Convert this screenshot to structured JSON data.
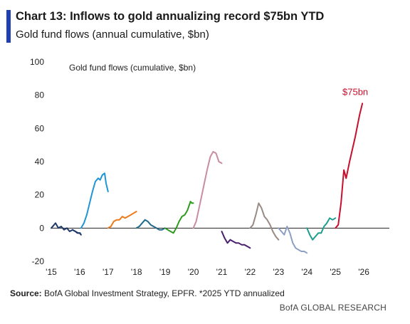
{
  "header": {
    "title": "Chart 13: Inflows to gold annualizing record $75bn YTD",
    "subtitle": "Gold fund flows (annual cumulative, $bn)"
  },
  "footer": {
    "source_label": "Source:",
    "source_text": " BofA Global Investment Strategy, EPFR. *2025 YTD annualized",
    "brand": "BofA GLOBAL RESEARCH"
  },
  "chart_data": {
    "type": "line",
    "title": "Chart 13: Inflows to gold annualizing record $75bn YTD",
    "subtitle": "Gold fund flows (annual cumulative, $bn)",
    "inner_label": "Gold fund flows (cumulative, $bn)",
    "xlabel": "",
    "ylabel": "",
    "xlim": [
      2015,
      2026.9
    ],
    "ylim": [
      -20,
      100
    ],
    "y_ticks": [
      -20,
      0,
      20,
      40,
      60,
      80,
      100
    ],
    "x_ticks": [
      {
        "value": 2015,
        "label": "'15"
      },
      {
        "value": 2016,
        "label": "'16"
      },
      {
        "value": 2017,
        "label": "'17"
      },
      {
        "value": 2018,
        "label": "'18"
      },
      {
        "value": 2019,
        "label": "'19"
      },
      {
        "value": 2020,
        "label": "'20"
      },
      {
        "value": 2021,
        "label": "'21"
      },
      {
        "value": 2022,
        "label": "'22"
      },
      {
        "value": 2023,
        "label": "'23"
      },
      {
        "value": 2024,
        "label": "'24"
      },
      {
        "value": 2025,
        "label": "'25"
      },
      {
        "value": 2026,
        "label": "'26"
      }
    ],
    "grid": false,
    "zero_line": true,
    "annotations": [
      {
        "text": "$75bn",
        "x": 2025.95,
        "y": 75,
        "color": "#c8102e"
      }
    ],
    "series": [
      {
        "color": "#1f3a6b",
        "points": [
          [
            2015.0,
            0
          ],
          [
            2015.1,
            2
          ],
          [
            2015.15,
            3
          ],
          [
            2015.25,
            0
          ],
          [
            2015.35,
            1
          ],
          [
            2015.45,
            -1
          ],
          [
            2015.55,
            0
          ],
          [
            2015.65,
            -2
          ],
          [
            2015.75,
            -1
          ],
          [
            2015.85,
            -2
          ],
          [
            2015.95,
            -3
          ],
          [
            2016.02,
            -3
          ]
        ]
      },
      {
        "color": "#1f3a6b",
        "points": [
          [
            2015.75,
            -1
          ],
          [
            2015.85,
            -2
          ],
          [
            2015.92,
            -3
          ],
          [
            2016.0,
            -3
          ],
          [
            2016.05,
            -4
          ]
        ]
      },
      {
        "color": "#1f95d6",
        "points": [
          [
            2016.05,
            0
          ],
          [
            2016.15,
            3
          ],
          [
            2016.25,
            8
          ],
          [
            2016.35,
            15
          ],
          [
            2016.45,
            22
          ],
          [
            2016.55,
            28
          ],
          [
            2016.65,
            30
          ],
          [
            2016.72,
            29
          ],
          [
            2016.8,
            32
          ],
          [
            2016.88,
            33
          ],
          [
            2016.93,
            27
          ],
          [
            2017.0,
            22
          ]
        ]
      },
      {
        "color": "#ef7a1a",
        "points": [
          [
            2017.0,
            0
          ],
          [
            2017.1,
            1
          ],
          [
            2017.2,
            4
          ],
          [
            2017.3,
            5
          ],
          [
            2017.4,
            5
          ],
          [
            2017.5,
            7
          ],
          [
            2017.6,
            6
          ],
          [
            2017.7,
            7
          ],
          [
            2017.8,
            8
          ],
          [
            2017.9,
            9
          ],
          [
            2018.0,
            10
          ]
        ]
      },
      {
        "color": "#1f6b8b",
        "points": [
          [
            2018.0,
            0
          ],
          [
            2018.1,
            1
          ],
          [
            2018.2,
            3
          ],
          [
            2018.3,
            5
          ],
          [
            2018.4,
            4
          ],
          [
            2018.5,
            2
          ],
          [
            2018.6,
            1
          ],
          [
            2018.7,
            0
          ],
          [
            2018.8,
            -1
          ],
          [
            2018.9,
            -1
          ],
          [
            2019.0,
            0
          ]
        ]
      },
      {
        "color": "#2e9b1f",
        "points": [
          [
            2019.0,
            0
          ],
          [
            2019.1,
            -1
          ],
          [
            2019.2,
            -2
          ],
          [
            2019.3,
            -3
          ],
          [
            2019.4,
            0
          ],
          [
            2019.5,
            4
          ],
          [
            2019.6,
            7
          ],
          [
            2019.7,
            8
          ],
          [
            2019.8,
            11
          ],
          [
            2019.9,
            16
          ],
          [
            2019.95,
            15
          ],
          [
            2020.0,
            15
          ]
        ]
      },
      {
        "color": "#c98ca3",
        "points": [
          [
            2020.0,
            0
          ],
          [
            2020.1,
            4
          ],
          [
            2020.2,
            12
          ],
          [
            2020.3,
            20
          ],
          [
            2020.4,
            28
          ],
          [
            2020.5,
            36
          ],
          [
            2020.6,
            43
          ],
          [
            2020.7,
            46
          ],
          [
            2020.8,
            45
          ],
          [
            2020.9,
            40
          ],
          [
            2021.0,
            39
          ]
        ]
      },
      {
        "color": "#4a1f6e",
        "points": [
          [
            2021.0,
            -2
          ],
          [
            2021.1,
            -6
          ],
          [
            2021.2,
            -9
          ],
          [
            2021.3,
            -7
          ],
          [
            2021.4,
            -8
          ],
          [
            2021.5,
            -9
          ],
          [
            2021.6,
            -9
          ],
          [
            2021.7,
            -10
          ],
          [
            2021.8,
            -10
          ],
          [
            2021.9,
            -11
          ],
          [
            2022.0,
            -12
          ]
        ]
      },
      {
        "color": "#9a8a86",
        "points": [
          [
            2022.0,
            0
          ],
          [
            2022.1,
            2
          ],
          [
            2022.2,
            8
          ],
          [
            2022.3,
            15
          ],
          [
            2022.4,
            12
          ],
          [
            2022.5,
            7
          ],
          [
            2022.6,
            5
          ],
          [
            2022.7,
            2
          ],
          [
            2022.8,
            -2
          ],
          [
            2022.9,
            -5
          ],
          [
            2023.0,
            -7
          ]
        ]
      },
      {
        "color": "#8da0c4",
        "points": [
          [
            2023.0,
            0
          ],
          [
            2023.1,
            -2
          ],
          [
            2023.2,
            -4
          ],
          [
            2023.3,
            1
          ],
          [
            2023.4,
            -3
          ],
          [
            2023.5,
            -9
          ],
          [
            2023.6,
            -12
          ],
          [
            2023.7,
            -13
          ],
          [
            2023.8,
            -14
          ],
          [
            2023.9,
            -14
          ],
          [
            2024.0,
            -15
          ]
        ]
      },
      {
        "color": "#1e9e8e",
        "points": [
          [
            2024.0,
            0
          ],
          [
            2024.1,
            -4
          ],
          [
            2024.2,
            -7
          ],
          [
            2024.3,
            -5
          ],
          [
            2024.4,
            -3
          ],
          [
            2024.5,
            -3
          ],
          [
            2024.6,
            1
          ],
          [
            2024.7,
            3
          ],
          [
            2024.8,
            6
          ],
          [
            2024.9,
            5
          ],
          [
            2025.0,
            6
          ]
        ]
      },
      {
        "color": "#c8102e",
        "points": [
          [
            2025.0,
            0
          ],
          [
            2025.1,
            2
          ],
          [
            2025.2,
            15
          ],
          [
            2025.3,
            35
          ],
          [
            2025.38,
            30
          ],
          [
            2025.5,
            40
          ],
          [
            2025.7,
            55
          ],
          [
            2025.85,
            68
          ],
          [
            2025.95,
            75
          ]
        ]
      }
    ]
  }
}
